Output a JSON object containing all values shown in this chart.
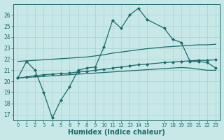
{
  "bg_color": "#c8e8e8",
  "line_color": "#1a6b6b",
  "grid_color": "#a8d0d0",
  "xlabel": "Humidex (Indice chaleur)",
  "xlabel_fontsize": 7,
  "xlim": [
    -0.5,
    23.5
  ],
  "ylim": [
    16.5,
    27.0
  ],
  "yticks": [
    17,
    18,
    19,
    20,
    21,
    22,
    23,
    24,
    25,
    26
  ],
  "xticks": [
    0,
    1,
    2,
    3,
    4,
    5,
    6,
    7,
    8,
    9,
    10,
    11,
    12,
    13,
    14,
    15,
    17,
    18,
    19,
    20,
    21,
    22,
    23
  ],
  "series": [
    {
      "x": [
        0,
        1,
        2,
        3,
        4,
        5,
        6,
        7,
        8,
        9,
        10,
        11,
        12,
        13,
        14,
        15,
        17,
        18,
        19,
        20,
        21,
        22,
        23
      ],
      "y": [
        20.3,
        21.8,
        21.0,
        19.0,
        16.7,
        18.3,
        19.5,
        21.0,
        21.2,
        21.3,
        23.1,
        25.5,
        24.8,
        26.0,
        26.6,
        25.6,
        24.8,
        23.8,
        23.5,
        21.8,
        21.8,
        21.7,
        21.2
      ],
      "marker": "D",
      "markersize": 2.0,
      "linewidth": 0.9
    },
    {
      "x": [
        0,
        1,
        2,
        3,
        4,
        5,
        6,
        7,
        8,
        9,
        10,
        11,
        12,
        13,
        14,
        15,
        17,
        18,
        19,
        20,
        21,
        22,
        23
      ],
      "y": [
        21.8,
        21.85,
        21.9,
        21.95,
        22.0,
        22.05,
        22.1,
        22.15,
        22.2,
        22.3,
        22.4,
        22.55,
        22.65,
        22.75,
        22.85,
        22.95,
        23.1,
        23.15,
        23.2,
        23.25,
        23.3,
        23.3,
        23.35
      ],
      "marker": null,
      "markersize": 0,
      "linewidth": 0.9
    },
    {
      "x": [
        0,
        1,
        2,
        3,
        4,
        5,
        6,
        7,
        8,
        9,
        10,
        11,
        12,
        13,
        14,
        15,
        17,
        18,
        19,
        20,
        21,
        22,
        23
      ],
      "y": [
        20.3,
        20.4,
        20.5,
        20.6,
        20.65,
        20.7,
        20.75,
        20.85,
        20.9,
        21.0,
        21.1,
        21.2,
        21.3,
        21.4,
        21.5,
        21.55,
        21.7,
        21.75,
        21.8,
        21.85,
        21.9,
        21.9,
        21.95
      ],
      "marker": "D",
      "markersize": 2.0,
      "linewidth": 0.9
    },
    {
      "x": [
        0,
        1,
        2,
        3,
        4,
        5,
        6,
        7,
        8,
        9,
        10,
        11,
        12,
        13,
        14,
        15,
        17,
        18,
        19,
        20,
        21,
        22,
        23
      ],
      "y": [
        20.3,
        20.35,
        20.4,
        20.45,
        20.5,
        20.55,
        20.6,
        20.65,
        20.7,
        20.75,
        20.8,
        20.85,
        20.9,
        20.95,
        21.0,
        21.05,
        21.15,
        21.2,
        21.25,
        21.2,
        21.1,
        21.0,
        21.0
      ],
      "marker": null,
      "markersize": 0,
      "linewidth": 0.9
    }
  ]
}
